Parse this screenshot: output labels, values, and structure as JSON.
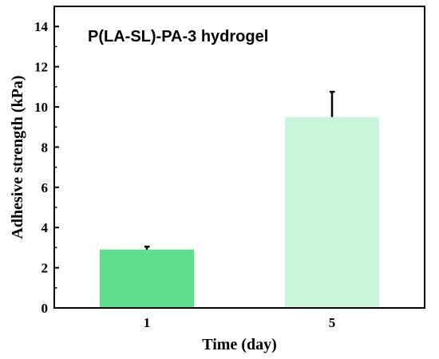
{
  "chart_data": {
    "type": "bar",
    "title": "P(LA-SL)-PA-3 hydrogel",
    "xlabel": "Time (day)",
    "ylabel": "Adhesive strength (kPa)",
    "categories": [
      "1",
      "5"
    ],
    "values": [
      2.9,
      9.5
    ],
    "error": [
      0.15,
      1.25
    ],
    "ylim": [
      0,
      15
    ],
    "yticks": [
      0,
      2,
      4,
      6,
      8,
      10,
      12,
      14
    ],
    "yticks_labels": [
      "0",
      "2",
      "4",
      "6",
      "8",
      "10",
      "12",
      "14"
    ],
    "grid": false,
    "legend": "none",
    "colors": {
      "bars": [
        "#5fe08d",
        "#c9f5da"
      ],
      "axis": "#000000",
      "error_bar": "#000000"
    }
  }
}
